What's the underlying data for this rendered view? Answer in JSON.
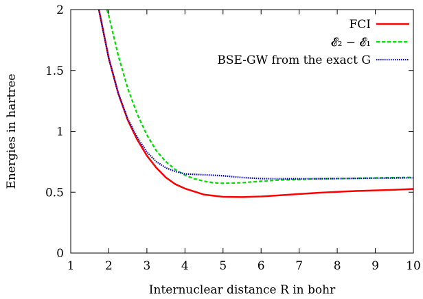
{
  "chart_data": {
    "type": "line",
    "xlabel": "Internuclear distance R in bohr",
    "ylabel": "Energies in hartree",
    "xlim": [
      1,
      10
    ],
    "ylim": [
      0,
      2
    ],
    "x_ticks": [
      "1",
      "2",
      "3",
      "4",
      "5",
      "6",
      "7",
      "8",
      "9",
      "10"
    ],
    "y_ticks": [
      "0",
      "0.5",
      "1",
      "1.5",
      "2"
    ],
    "legend_position": "top-right",
    "grid": false,
    "series": [
      {
        "name": "FCI",
        "color": "#ff0000",
        "style": "solid",
        "x": [
          1.74,
          2.0,
          2.25,
          2.5,
          2.75,
          3.0,
          3.25,
          3.5,
          3.75,
          4.0,
          4.5,
          5.0,
          5.5,
          6.0,
          6.5,
          7.0,
          7.5,
          8.0,
          8.5,
          9.0,
          9.5,
          10.0
        ],
        "y": [
          2.0,
          1.6,
          1.31,
          1.09,
          0.93,
          0.8,
          0.7,
          0.62,
          0.565,
          0.53,
          0.48,
          0.462,
          0.46,
          0.465,
          0.475,
          0.485,
          0.495,
          0.503,
          0.51,
          0.515,
          0.52,
          0.527
        ]
      },
      {
        "name": "𝓔₂ − 𝓔₁",
        "color": "#00dd00",
        "style": "dashed",
        "x": [
          1.95,
          2.0,
          2.25,
          2.5,
          2.75,
          3.0,
          3.25,
          3.5,
          3.75,
          4.0,
          4.25,
          4.5,
          4.75,
          5.0,
          5.5,
          6.0,
          6.5,
          7.0,
          7.5,
          8.0,
          9.0,
          10.0
        ],
        "y": [
          2.0,
          1.95,
          1.62,
          1.35,
          1.14,
          0.97,
          0.84,
          0.75,
          0.685,
          0.64,
          0.61,
          0.59,
          0.578,
          0.573,
          0.578,
          0.59,
          0.6,
          0.605,
          0.61,
          0.612,
          0.617,
          0.622
        ]
      },
      {
        "name": "BSE-GW from the exact G",
        "color": "#0000cc",
        "style": "dotted",
        "x": [
          1.74,
          2.0,
          2.25,
          2.5,
          2.75,
          3.0,
          3.25,
          3.5,
          3.75,
          4.0,
          4.5,
          5.0,
          5.5,
          6.0,
          6.5,
          7.0,
          8.0,
          9.0,
          10.0
        ],
        "y": [
          2.0,
          1.6,
          1.31,
          1.1,
          0.95,
          0.83,
          0.75,
          0.7,
          0.67,
          0.65,
          0.643,
          0.635,
          0.62,
          0.612,
          0.61,
          0.61,
          0.612,
          0.615,
          0.618
        ]
      }
    ]
  }
}
